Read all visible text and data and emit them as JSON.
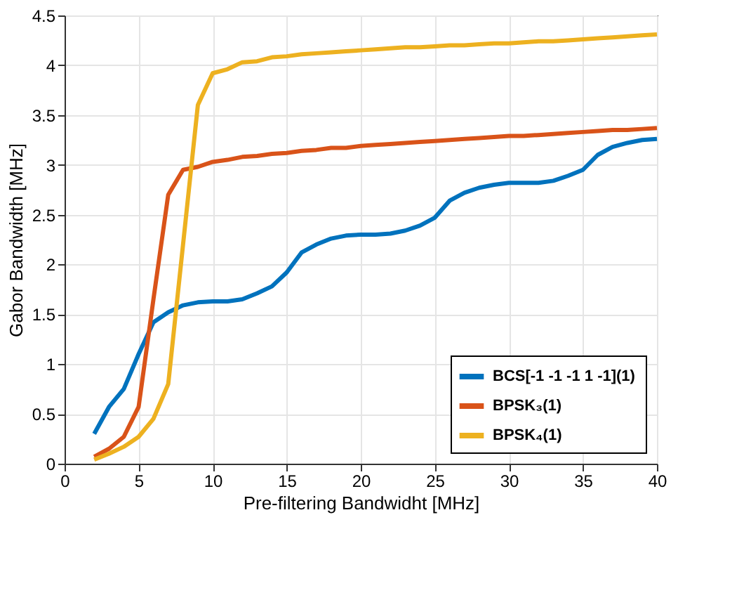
{
  "chart_data": {
    "type": "line",
    "xlabel": "Pre-filtering Bandwidht [MHz]",
    "ylabel": "Gabor Bandwidth [MHz]",
    "x": [
      2,
      3,
      4,
      5,
      6,
      7,
      8,
      9,
      10,
      11,
      12,
      13,
      14,
      15,
      16,
      17,
      18,
      19,
      20,
      21,
      22,
      23,
      24,
      25,
      26,
      27,
      28,
      29,
      30,
      31,
      32,
      33,
      34,
      35,
      36,
      37,
      38,
      39,
      40
    ],
    "series": [
      {
        "name": "BCS[-1 -1 -1  1 -1](1)",
        "color": "#0072bd",
        "values": [
          0.3,
          0.57,
          0.75,
          1.1,
          1.42,
          1.52,
          1.59,
          1.62,
          1.63,
          1.63,
          1.65,
          1.71,
          1.78,
          1.92,
          2.12,
          2.2,
          2.26,
          2.29,
          2.3,
          2.3,
          2.31,
          2.34,
          2.39,
          2.47,
          2.64,
          2.72,
          2.77,
          2.8,
          2.82,
          2.82,
          2.82,
          2.84,
          2.89,
          2.95,
          3.1,
          3.18,
          3.22,
          3.25,
          3.26
        ]
      },
      {
        "name": "BPSK₃(1)",
        "color": "#d95319",
        "values": [
          0.07,
          0.15,
          0.27,
          0.57,
          1.65,
          2.7,
          2.95,
          2.98,
          3.03,
          3.05,
          3.08,
          3.09,
          3.11,
          3.12,
          3.14,
          3.15,
          3.17,
          3.17,
          3.19,
          3.2,
          3.21,
          3.22,
          3.23,
          3.24,
          3.25,
          3.26,
          3.27,
          3.28,
          3.29,
          3.29,
          3.3,
          3.31,
          3.32,
          3.33,
          3.34,
          3.35,
          3.35,
          3.36,
          3.37
        ]
      },
      {
        "name": "BPSK₄(1)",
        "color": "#edb120",
        "values": [
          0.04,
          0.1,
          0.17,
          0.27,
          0.45,
          0.8,
          2.2,
          3.6,
          3.92,
          3.96,
          4.03,
          4.04,
          4.08,
          4.09,
          4.11,
          4.12,
          4.13,
          4.14,
          4.15,
          4.16,
          4.17,
          4.18,
          4.18,
          4.19,
          4.2,
          4.2,
          4.21,
          4.22,
          4.22,
          4.23,
          4.24,
          4.24,
          4.25,
          4.26,
          4.27,
          4.28,
          4.29,
          4.3,
          4.31
        ]
      }
    ],
    "xlim": [
      0,
      40
    ],
    "xticks": [
      0,
      5,
      10,
      15,
      20,
      25,
      30,
      35,
      40
    ],
    "ylim": [
      0,
      4.5
    ],
    "yticks": [
      0,
      0.5,
      1,
      1.5,
      2,
      2.5,
      3,
      3.5,
      4,
      4.5
    ],
    "grid": true,
    "legend": "bottom right",
    "marker": "none",
    "line_style": "solid"
  }
}
